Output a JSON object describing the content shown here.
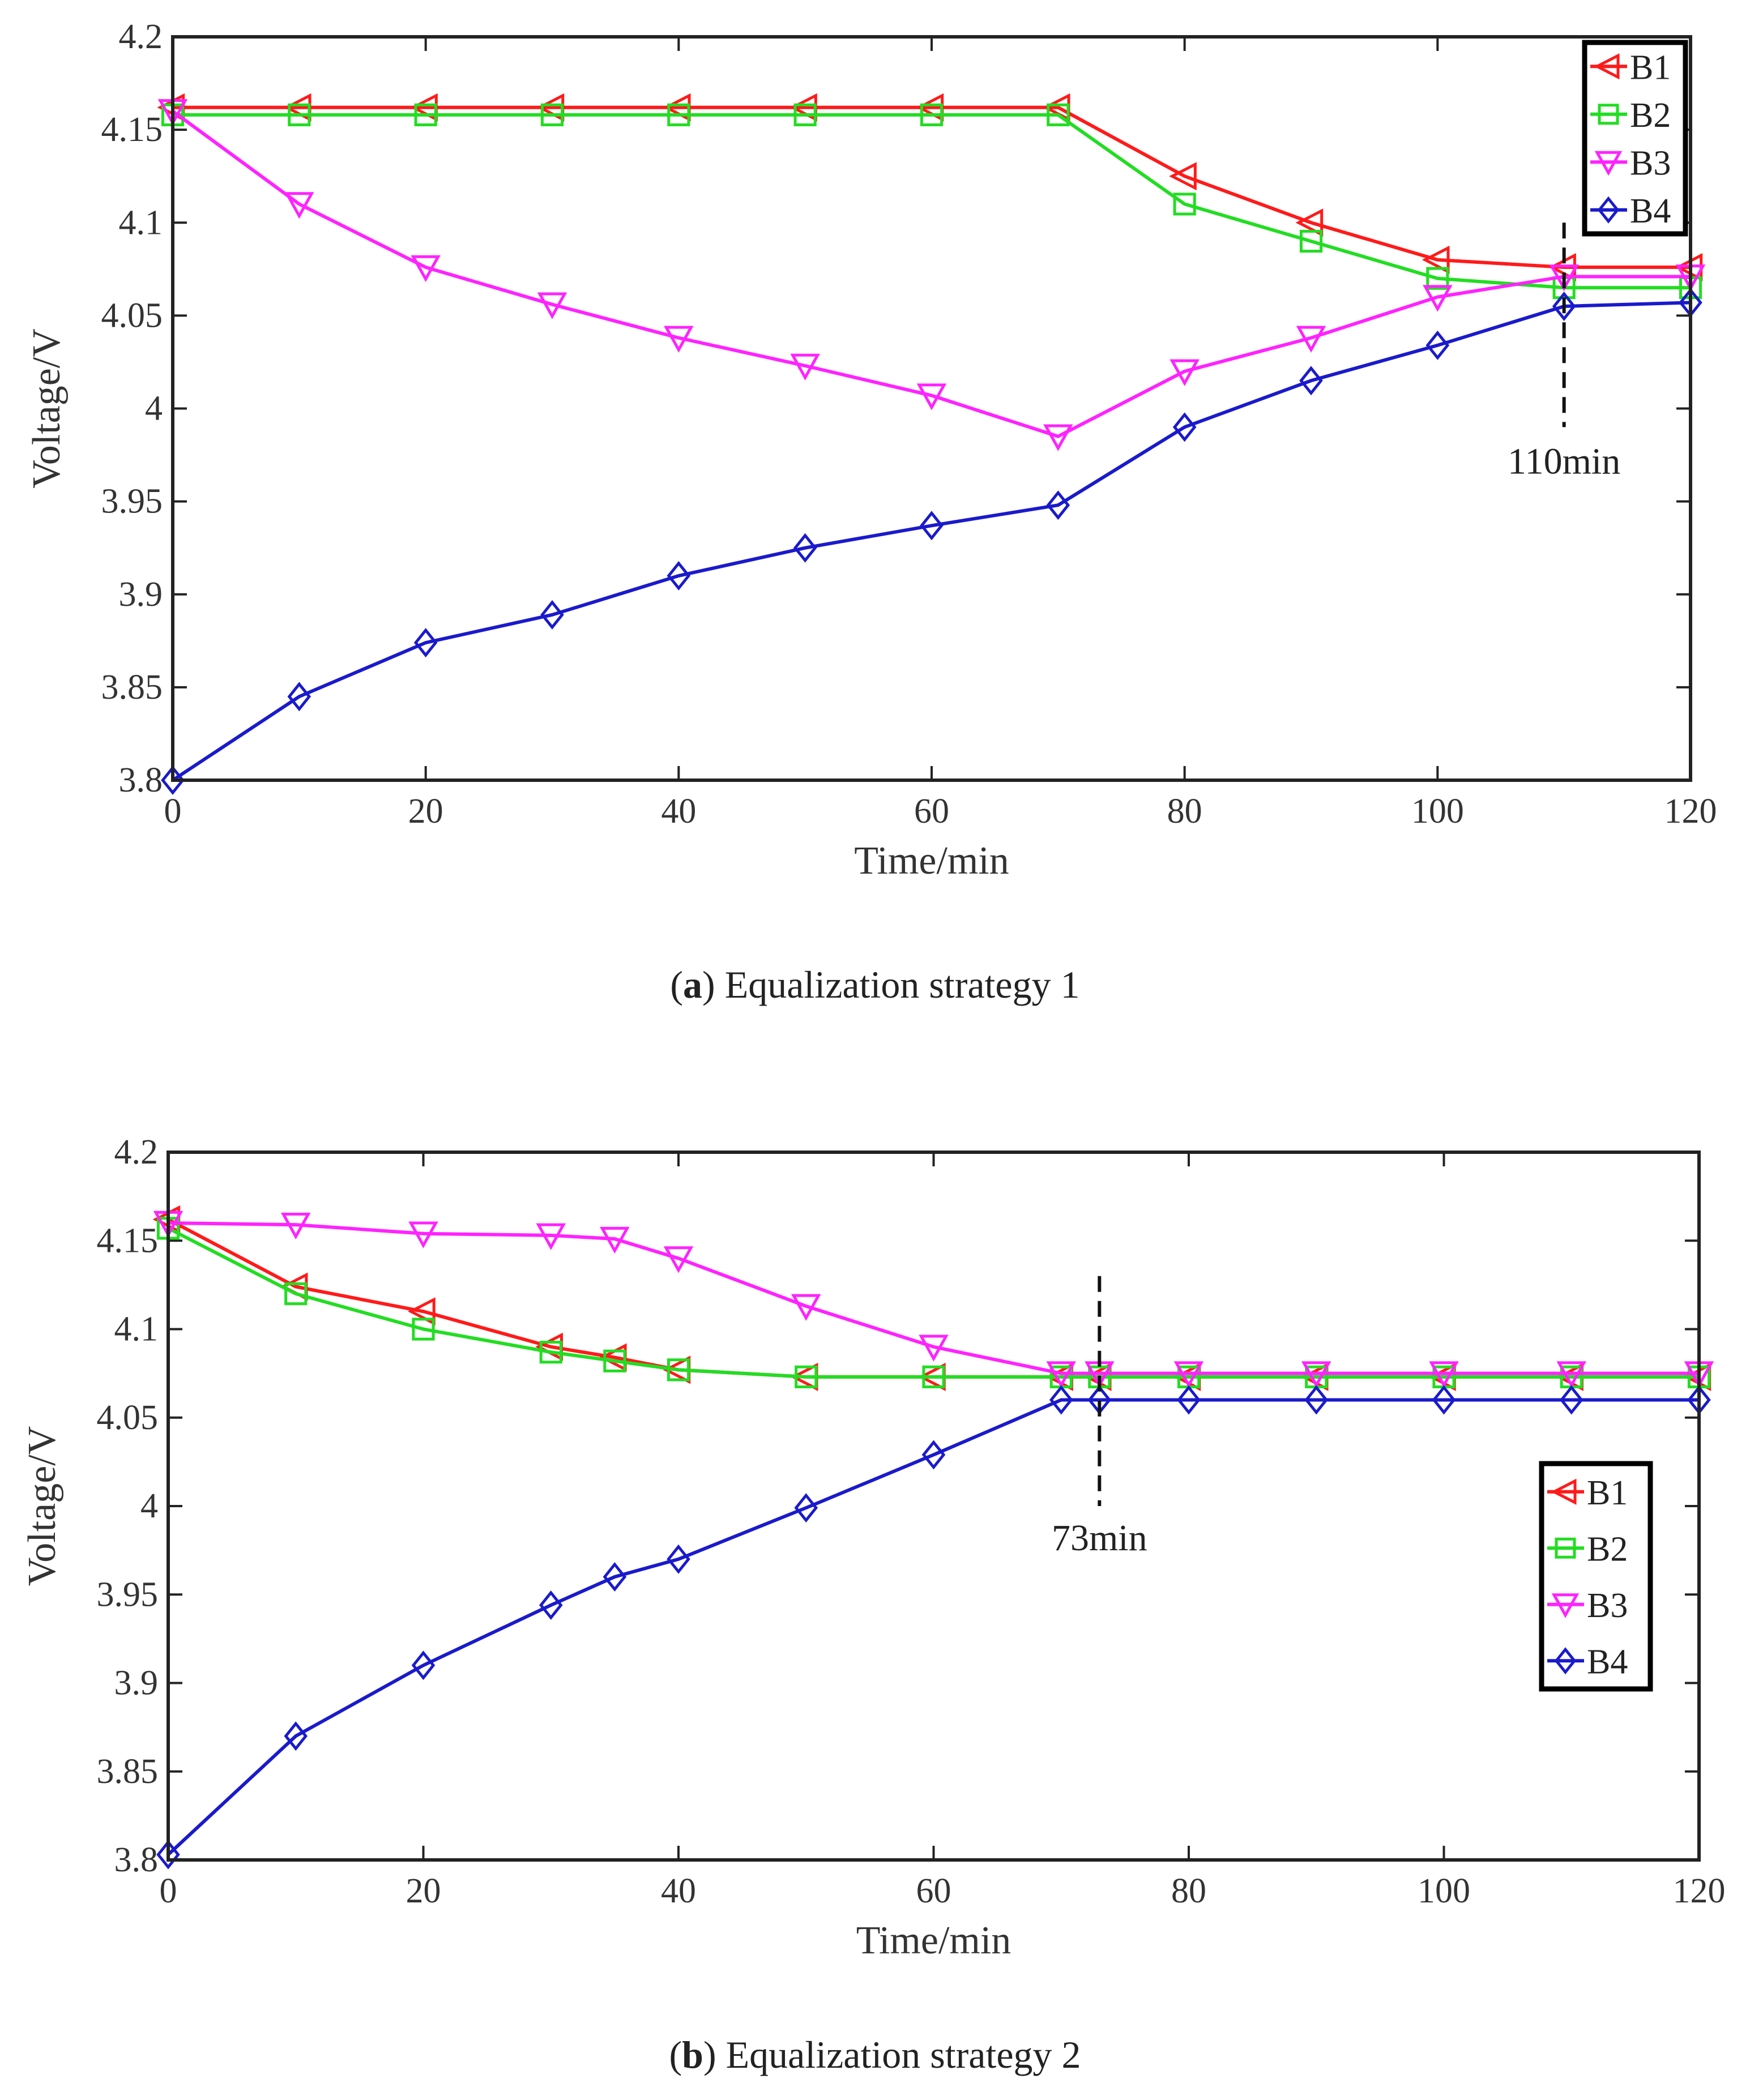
{
  "colors": {
    "B1": "#ff1a1a",
    "B2": "#22dd22",
    "B3": "#ff22ff",
    "B4": "#1a1acc"
  },
  "chart_data": [
    {
      "type": "line",
      "panel": "a",
      "caption_letter": "a",
      "caption_text": "Equalization strategy 1",
      "xlabel": "Time/min",
      "ylabel": "Voltage/V",
      "xlim": [
        0,
        120
      ],
      "ylim": [
        3.8,
        4.2
      ],
      "xticks": [
        0,
        20,
        40,
        60,
        80,
        100,
        120
      ],
      "xtick_labels": [
        "0",
        "20",
        "40",
        "60",
        "80",
        "100",
        "120"
      ],
      "yticks": [
        3.8,
        3.85,
        3.9,
        3.95,
        4.0,
        4.05,
        4.1,
        4.15,
        4.2
      ],
      "ytick_labels": [
        "3.8",
        "3.85",
        "3.9",
        "3.95",
        "4",
        "4.05",
        "4.1",
        "4.15",
        "4.2"
      ],
      "legend": "top-right",
      "annotation": {
        "x": 110,
        "text": "110min",
        "y_from": 3.99,
        "y_to": 4.1,
        "text_y": 3.965
      },
      "series": [
        {
          "name": "B1",
          "marker": "triangle-left",
          "x": [
            0,
            10,
            20,
            30,
            40,
            50,
            60,
            70,
            80,
            90,
            100,
            110,
            120
          ],
          "values": [
            4.162,
            4.162,
            4.162,
            4.162,
            4.162,
            4.162,
            4.162,
            4.162,
            4.125,
            4.1,
            4.08,
            4.076,
            4.076
          ]
        },
        {
          "name": "B2",
          "marker": "square",
          "x": [
            0,
            10,
            20,
            30,
            40,
            50,
            60,
            70,
            80,
            90,
            100,
            110,
            120
          ],
          "values": [
            4.158,
            4.158,
            4.158,
            4.158,
            4.158,
            4.158,
            4.158,
            4.158,
            4.11,
            4.09,
            4.07,
            4.065,
            4.065
          ]
        },
        {
          "name": "B3",
          "marker": "triangle-down",
          "x": [
            0,
            10,
            20,
            30,
            40,
            50,
            60,
            70,
            80,
            90,
            100,
            110,
            120
          ],
          "values": [
            4.16,
            4.11,
            4.076,
            4.056,
            4.038,
            4.023,
            4.007,
            3.985,
            4.02,
            4.038,
            4.06,
            4.071,
            4.071
          ]
        },
        {
          "name": "B4",
          "marker": "diamond",
          "x": [
            0,
            10,
            20,
            30,
            40,
            50,
            60,
            70,
            80,
            90,
            100,
            110,
            120
          ],
          "values": [
            3.8,
            3.845,
            3.874,
            3.889,
            3.91,
            3.925,
            3.937,
            3.948,
            3.99,
            4.015,
            4.034,
            4.055,
            4.057
          ]
        }
      ]
    },
    {
      "type": "line",
      "panel": "b",
      "caption_letter": "b",
      "caption_text": "Equalization strategy 2",
      "xlabel": "Time/min",
      "ylabel": "Voltage/V",
      "xlim": [
        0,
        120
      ],
      "ylim": [
        3.8,
        4.2
      ],
      "xticks": [
        0,
        20,
        40,
        60,
        80,
        100,
        120
      ],
      "xtick_labels": [
        "0",
        "20",
        "40",
        "60",
        "80",
        "100",
        "120"
      ],
      "yticks": [
        3.8,
        3.85,
        3.9,
        3.95,
        4.0,
        4.05,
        4.1,
        4.15,
        4.2
      ],
      "ytick_labels": [
        "3.8",
        "3.85",
        "3.9",
        "3.95",
        "4",
        "4.05",
        "4.1",
        "4.15",
        "4.2"
      ],
      "legend": "center-right",
      "annotation": {
        "x": 73,
        "text": "73min",
        "y_from": 4.0,
        "y_to": 4.13,
        "text_y": 3.975
      },
      "series": [
        {
          "name": "B1",
          "marker": "triangle-left",
          "x": [
            0,
            10,
            20,
            30,
            35,
            40,
            50,
            60,
            70,
            73,
            80,
            90,
            100,
            110,
            120
          ],
          "values": [
            4.162,
            4.124,
            4.11,
            4.09,
            4.084,
            4.077,
            4.073,
            4.073,
            4.073,
            4.073,
            4.073,
            4.073,
            4.073,
            4.073,
            4.073
          ]
        },
        {
          "name": "B2",
          "marker": "square",
          "x": [
            0,
            10,
            20,
            30,
            35,
            40,
            50,
            60,
            70,
            73,
            80,
            90,
            100,
            110,
            120
          ],
          "values": [
            4.157,
            4.12,
            4.1,
            4.087,
            4.082,
            4.077,
            4.073,
            4.073,
            4.073,
            4.073,
            4.073,
            4.073,
            4.073,
            4.073,
            4.073
          ]
        },
        {
          "name": "B3",
          "marker": "triangle-down",
          "x": [
            0,
            10,
            20,
            30,
            35,
            40,
            50,
            60,
            70,
            73,
            80,
            90,
            100,
            110,
            120
          ],
          "values": [
            4.16,
            4.159,
            4.154,
            4.153,
            4.151,
            4.14,
            4.113,
            4.09,
            4.075,
            4.075,
            4.075,
            4.075,
            4.075,
            4.075,
            4.075
          ]
        },
        {
          "name": "B4",
          "marker": "diamond",
          "x": [
            0,
            10,
            20,
            30,
            35,
            40,
            50,
            60,
            70,
            73,
            80,
            90,
            100,
            110,
            120
          ],
          "values": [
            3.803,
            3.87,
            3.91,
            3.944,
            3.96,
            3.97,
            3.999,
            4.029,
            4.06,
            4.06,
            4.06,
            4.06,
            4.06,
            4.06,
            4.06
          ]
        }
      ]
    }
  ]
}
